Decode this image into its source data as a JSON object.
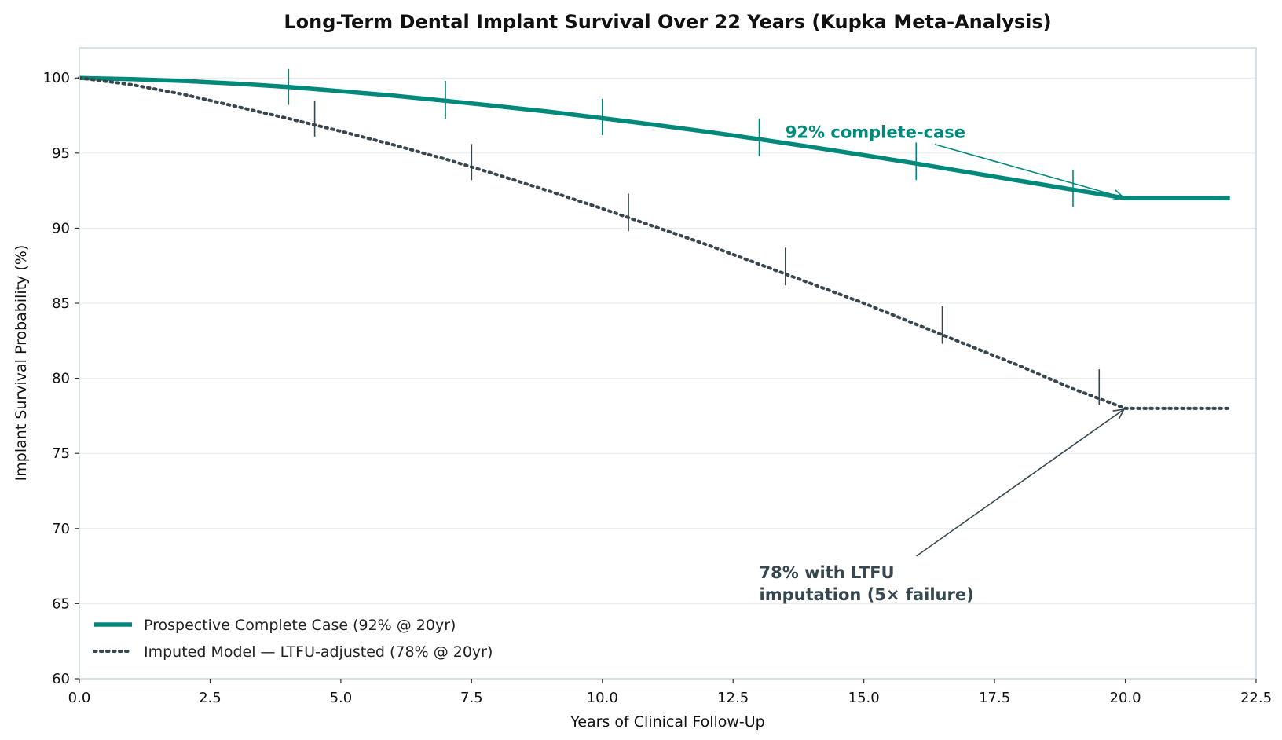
{
  "chart_data": {
    "type": "line",
    "title": "Long-Term Dental Implant Survival Over 22 Years (Kupka Meta-Analysis)",
    "xlabel": "Years of Clinical Follow-Up",
    "ylabel": "Implant Survival Probability (%)",
    "xlim": [
      0,
      22.5
    ],
    "ylim": [
      60,
      102
    ],
    "xticks": [
      0.0,
      2.5,
      5.0,
      7.5,
      10.0,
      12.5,
      15.0,
      17.5,
      20.0,
      22.5
    ],
    "xtick_labels": [
      "0.0",
      "2.5",
      "5.0",
      "7.5",
      "10.0",
      "12.5",
      "15.0",
      "17.5",
      "20.0",
      "22.5"
    ],
    "yticks": [
      60,
      65,
      70,
      75,
      80,
      85,
      90,
      95,
      100
    ],
    "ytick_labels": [
      "60",
      "65",
      "70",
      "75",
      "80",
      "85",
      "90",
      "95",
      "100"
    ],
    "grid": "horizontal",
    "legend_position": "lower-left",
    "series": [
      {
        "name": "Prospective Complete Case (92% @ 20yr)",
        "style": "solid",
        "color": "#00897b",
        "x": [
          0,
          1,
          2,
          3,
          4,
          5,
          6,
          7,
          8,
          9,
          10,
          11,
          12,
          13,
          14,
          15,
          16,
          17,
          18,
          19,
          20,
          22
        ],
        "y": [
          100,
          99.92,
          99.8,
          99.62,
          99.4,
          99.12,
          98.82,
          98.48,
          98.12,
          97.74,
          97.32,
          96.88,
          96.42,
          95.92,
          95.4,
          94.86,
          94.3,
          93.72,
          93.14,
          92.56,
          92.0,
          92.0
        ],
        "error_bars": [
          {
            "x": 4,
            "low": 98.2,
            "high": 100.6
          },
          {
            "x": 7,
            "low": 97.3,
            "high": 99.8
          },
          {
            "x": 10,
            "low": 96.2,
            "high": 98.6
          },
          {
            "x": 13,
            "low": 94.8,
            "high": 97.3
          },
          {
            "x": 16,
            "low": 93.2,
            "high": 95.7
          },
          {
            "x": 19,
            "low": 91.4,
            "high": 93.9
          }
        ]
      },
      {
        "name": "Imputed Model — LTFU-adjusted (78% @ 20yr)",
        "style": "dotted",
        "color": "#37474f",
        "x": [
          0,
          1,
          2,
          3,
          4,
          5,
          6,
          7,
          8,
          9,
          10,
          11,
          12,
          13,
          14,
          15,
          16,
          17,
          18,
          19,
          20,
          22
        ],
        "y": [
          100,
          99.55,
          98.9,
          98.1,
          97.3,
          96.45,
          95.55,
          94.6,
          93.55,
          92.45,
          91.3,
          90.1,
          88.9,
          87.6,
          86.3,
          85.0,
          83.6,
          82.2,
          80.8,
          79.3,
          78.0,
          78.0
        ],
        "error_bars": [
          {
            "x": 4.5,
            "low": 96.1,
            "high": 98.5
          },
          {
            "x": 7.5,
            "low": 93.2,
            "high": 95.6
          },
          {
            "x": 10.5,
            "low": 89.8,
            "high": 92.3
          },
          {
            "x": 13.5,
            "low": 86.2,
            "high": 88.7
          },
          {
            "x": 16.5,
            "low": 82.3,
            "high": 84.8
          },
          {
            "x": 19.5,
            "low": 78.2,
            "high": 80.6
          }
        ]
      }
    ],
    "annotations": [
      {
        "text": "92% complete-case",
        "color": "#00897b",
        "text_x": 13.5,
        "text_y": 96.0,
        "arrow_to_x": 20,
        "arrow_to_y": 92
      },
      {
        "text_lines": [
          "78% with LTFU",
          "imputation (5× failure)"
        ],
        "color": "#37474f",
        "text_x": 13.0,
        "text_y": 66.7,
        "arrow_to_x": 20,
        "arrow_to_y": 78
      }
    ]
  }
}
